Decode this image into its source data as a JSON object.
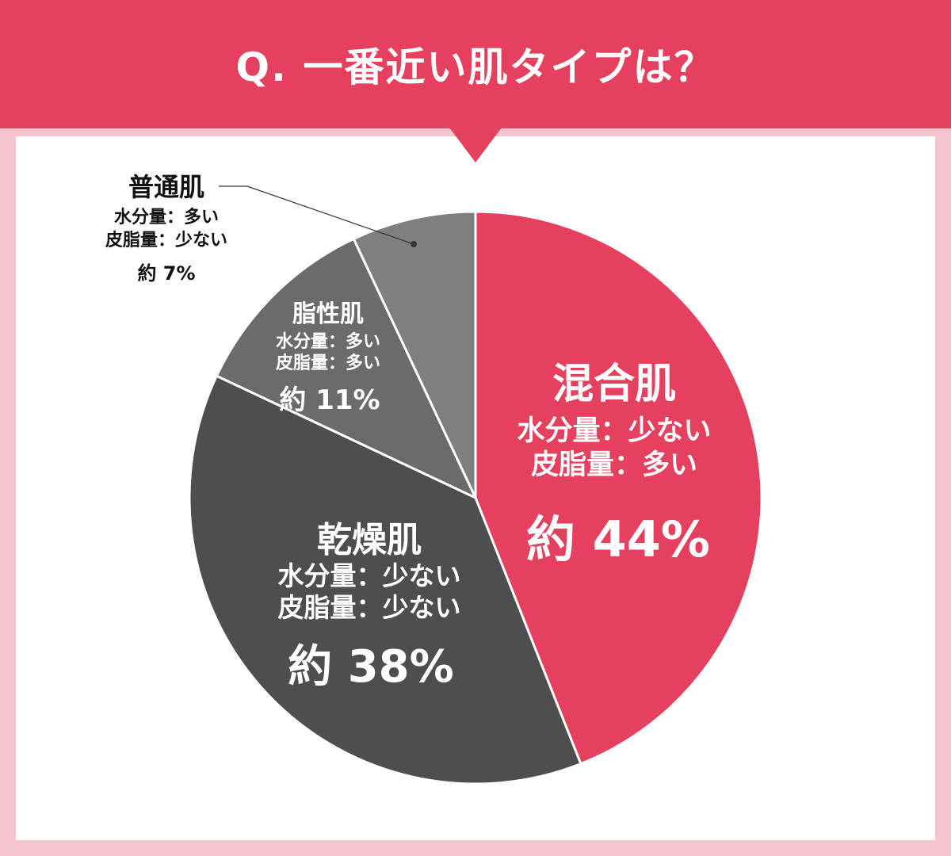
{
  "header": {
    "title": "Q. 一番近い肌タイプは？"
  },
  "colors": {
    "header_bg": "#e5405e",
    "page_bg": "#f6c4cf",
    "panel_bg": "#ffffff"
  },
  "chart_data": {
    "type": "pie",
    "title": "Q. 一番近い肌タイプは？",
    "start": "12 o'clock",
    "direction": "clockwise",
    "slices": [
      {
        "name": "混合肌",
        "line1": "水分量：少ない",
        "line2": "皮脂量：多い",
        "label": "約 44%",
        "value": 44,
        "color": "#e5405e"
      },
      {
        "name": "乾燥肌",
        "line1": "水分量：少ない",
        "line2": "皮脂量：少ない",
        "label": "約 38%",
        "value": 38,
        "color": "#4e4e4e"
      },
      {
        "name": "脂性肌",
        "line1": "水分量：多い",
        "line2": "皮脂量：多い",
        "label": "約 11%",
        "value": 11,
        "color": "#6b6b6b"
      },
      {
        "name": "普通肌",
        "line1": "水分量：多い",
        "line2": "皮脂量：少ない",
        "label": "約 7%",
        "value": 7,
        "color": "#7f7f7f"
      }
    ]
  }
}
